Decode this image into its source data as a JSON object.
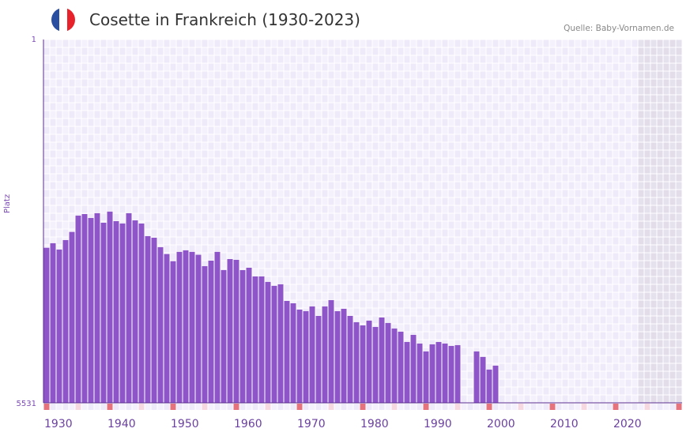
{
  "header": {
    "title": "Cosette in Frankreich (1930-2023)",
    "source": "Quelle: Baby-Vornamen.de",
    "flag_colors": [
      "#2a4fa0",
      "#ffffff",
      "#e8222a"
    ]
  },
  "chart_data": {
    "type": "bar",
    "title": "Cosette in Frankreich (1930-2023)",
    "xlabel": "",
    "ylabel": "Platz",
    "ylim": [
      5531,
      1
    ],
    "y_ticks": [
      "1",
      "5531"
    ],
    "x_range": [
      1930,
      2030
    ],
    "x_ticks": [
      "1930",
      "1940",
      "1950",
      "1960",
      "1970",
      "1980",
      "1990",
      "2000",
      "2010",
      "2020"
    ],
    "future_shaded_from": 2024,
    "grid": true,
    "bar_color": "#8e55c8",
    "years": [
      1930,
      1931,
      1932,
      1933,
      1934,
      1935,
      1936,
      1937,
      1938,
      1939,
      1940,
      1941,
      1942,
      1943,
      1944,
      1945,
      1946,
      1947,
      1948,
      1949,
      1950,
      1951,
      1952,
      1953,
      1954,
      1955,
      1956,
      1957,
      1958,
      1959,
      1960,
      1961,
      1962,
      1963,
      1964,
      1965,
      1966,
      1967,
      1968,
      1969,
      1970,
      1971,
      1972,
      1973,
      1974,
      1975,
      1976,
      1977,
      1978,
      1979,
      1980,
      1981,
      1982,
      1983,
      1984,
      1985,
      1986,
      1987,
      1988,
      1989,
      1990,
      1991,
      1992,
      1993,
      1994,
      1995,
      1996,
      1997,
      1998,
      1999,
      2000,
      2001
    ],
    "values": [
      3171,
      3102,
      3198,
      3054,
      2930,
      2682,
      2658,
      2718,
      2645,
      2790,
      2621,
      2766,
      2802,
      2645,
      2754,
      2802,
      2994,
      3018,
      3162,
      3266,
      3375,
      3234,
      3210,
      3234,
      3278,
      3451,
      3367,
      3234,
      3511,
      3343,
      3355,
      3511,
      3475,
      3607,
      3607,
      3691,
      3751,
      3727,
      3980,
      4016,
      4112,
      4136,
      4064,
      4208,
      4064,
      3968,
      4136,
      4100,
      4208,
      4304,
      4352,
      4280,
      4376,
      4232,
      4316,
      4400,
      4448,
      4605,
      4497,
      4629,
      4749,
      4641,
      4605,
      4629,
      4665,
      4653,
      null,
      null,
      4749,
      4833,
      5025,
      4965
    ]
  }
}
